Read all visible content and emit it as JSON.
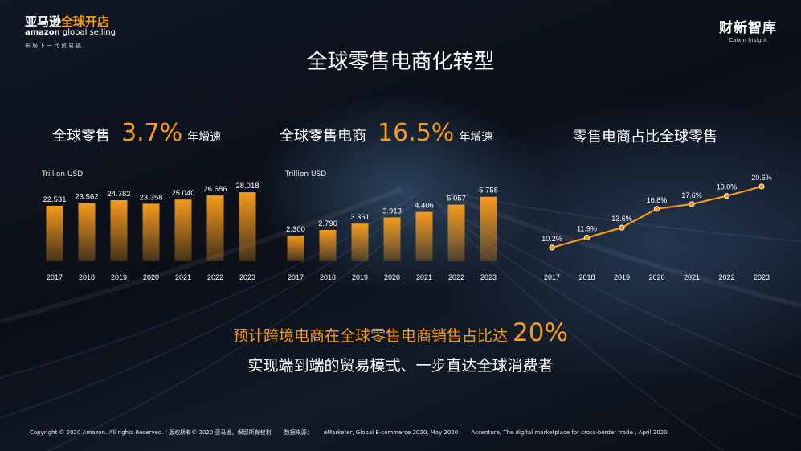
{
  "brand": {
    "logo_cn_white": "亚马逊",
    "logo_cn_orange": "全球开店",
    "logo_en_bold": "amazon",
    "logo_en_rest": "global selling",
    "tagline": "布局下一代贸易链",
    "caixin_cn": "财新智库",
    "caixin_en": "Caixin Insight"
  },
  "title": "全球零售电商化转型",
  "sections": [
    {
      "label": "全球零售",
      "pct": "3.7%",
      "suffix": "年增速",
      "unit": "Trillion USD"
    },
    {
      "label": "全球零售电商",
      "pct": "16.5%",
      "suffix": "年增速",
      "unit": "Trillion USD"
    },
    {
      "label": "零售电商占比全球零售",
      "pct": "",
      "suffix": "",
      "unit": ""
    }
  ],
  "chart_data": [
    {
      "type": "bar",
      "categories": [
        "2017",
        "2018",
        "2019",
        "2020",
        "2021",
        "2022",
        "2023"
      ],
      "values": [
        22.531,
        23.562,
        24.782,
        23.358,
        25.04,
        26.686,
        28.018
      ],
      "labels": [
        "22.531",
        "23.562",
        "24.782",
        "23.358",
        "25.040",
        "26.686",
        "28.018"
      ],
      "ylabel": "Trillion USD",
      "color": "#f59a1c"
    },
    {
      "type": "bar",
      "categories": [
        "2017",
        "2018",
        "2019",
        "2020",
        "2021",
        "2022",
        "2023"
      ],
      "values": [
        2.3,
        2.796,
        3.361,
        3.913,
        4.406,
        5.057,
        5.758
      ],
      "labels": [
        "2.300",
        "2.796",
        "3.361",
        "3.913",
        "4.406",
        "5.057",
        "5.758"
      ],
      "ylabel": "Trillion USD",
      "color": "#f59a1c"
    },
    {
      "type": "line",
      "categories": [
        "2017",
        "2018",
        "2019",
        "2020",
        "2021",
        "2022",
        "2023"
      ],
      "values": [
        10.2,
        11.9,
        13.6,
        16.8,
        17.6,
        19.0,
        20.6
      ],
      "labels": [
        "10.2%",
        "11.9%",
        "13.6%",
        "16.8%",
        "17.6%",
        "19.0%",
        "20.6%"
      ],
      "color": "#f59a1c"
    }
  ],
  "statement": {
    "line1_text": "预计跨境电商在全球零售电商销售占比达",
    "line1_value": "20%",
    "line2": "实现端到端的贸易模式、一步直达全球消费者"
  },
  "footer": {
    "copyright": "Copyright © 2020 Amazon. All rights Reserved. | 版权所有© 2020 亚马逊。保留所有权利",
    "source_label": "数据来源：",
    "source1": "eMarketer, Global E-commerce 2020, May 2020",
    "source2": "Accenture, The digital marketplace for cross-border trade , April 2020"
  }
}
